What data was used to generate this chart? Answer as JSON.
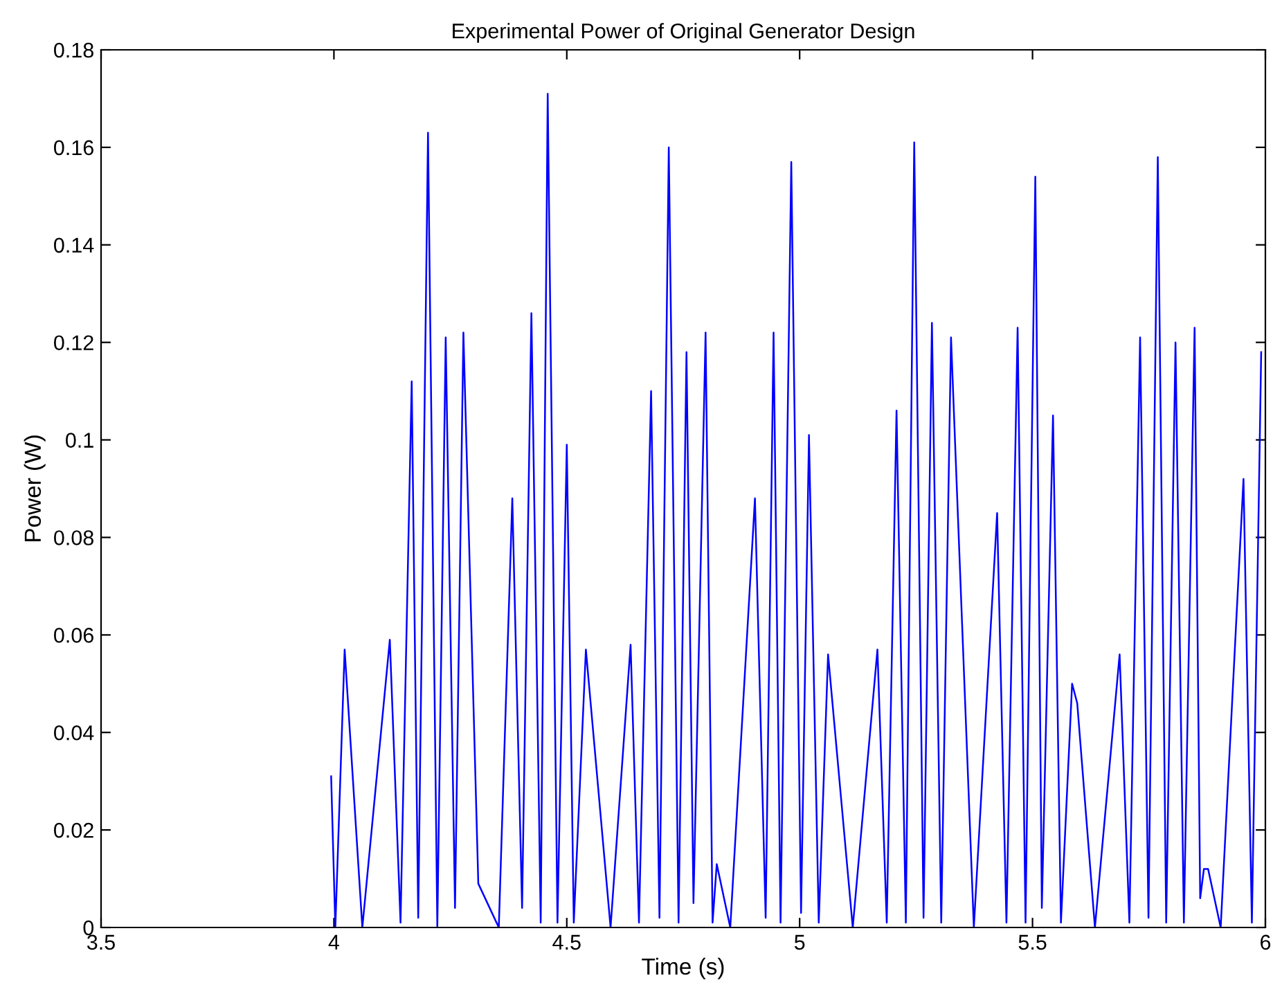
{
  "chart_data": {
    "type": "line",
    "title": "Experimental Power of Original Generator Design",
    "xlabel": "Time (s)",
    "ylabel": "Power (W)",
    "xlim": [
      3.5,
      6
    ],
    "ylim": [
      0,
      0.18
    ],
    "xticks": [
      3.5,
      4,
      4.5,
      5,
      5.5,
      6
    ],
    "yticks": [
      0,
      0.02,
      0.04,
      0.06,
      0.08,
      0.1,
      0.12,
      0.14,
      0.16,
      0.18
    ],
    "grid": false,
    "series": [
      {
        "color": "#0000ff",
        "x": [
          3.994,
          4.003,
          4.023,
          4.061,
          4.12,
          4.143,
          4.167,
          4.181,
          4.202,
          4.222,
          4.24,
          4.26,
          4.278,
          4.31,
          4.354,
          4.383,
          4.404,
          4.424,
          4.444,
          4.459,
          4.48,
          4.5,
          4.515,
          4.541,
          4.594,
          4.637,
          4.655,
          4.681,
          4.699,
          4.719,
          4.74,
          4.757,
          4.772,
          4.798,
          4.813,
          4.822,
          4.851,
          4.904,
          4.927,
          4.944,
          4.959,
          4.982,
          5.003,
          5.02,
          5.041,
          5.061,
          5.114,
          5.167,
          5.187,
          5.208,
          5.228,
          5.246,
          5.266,
          5.284,
          5.304,
          5.325,
          5.374,
          5.424,
          5.444,
          5.468,
          5.485,
          5.506,
          5.52,
          5.544,
          5.561,
          5.585,
          5.596,
          5.634,
          5.687,
          5.708,
          5.731,
          5.749,
          5.769,
          5.787,
          5.807,
          5.825,
          5.848,
          5.86,
          5.868,
          5.877,
          5.904,
          5.953,
          5.971,
          5.991
        ],
        "values": [
          0.031,
          0,
          0.057,
          0,
          0.059,
          0.001,
          0.112,
          0.002,
          0.163,
          0,
          0.121,
          0.004,
          0.122,
          0.009,
          0,
          0.088,
          0.004,
          0.126,
          0.001,
          0.171,
          0.001,
          0.099,
          0.001,
          0.057,
          0,
          0.058,
          0.001,
          0.11,
          0.002,
          0.16,
          0.001,
          0.118,
          0.005,
          0.122,
          0.001,
          0.013,
          0,
          0.088,
          0.002,
          0.122,
          0.001,
          0.157,
          0.003,
          0.101,
          0.001,
          0.056,
          0,
          0.057,
          0.001,
          0.106,
          0.001,
          0.161,
          0.002,
          0.124,
          0.001,
          0.121,
          0,
          0.085,
          0.001,
          0.123,
          0.001,
          0.154,
          0.004,
          0.105,
          0.001,
          0.05,
          0.046,
          0,
          0.056,
          0.001,
          0.121,
          0.002,
          0.158,
          0.001,
          0.12,
          0.001,
          0.123,
          0.006,
          0.012,
          0.012,
          0,
          0.092,
          0.001,
          0.118
        ]
      }
    ]
  }
}
